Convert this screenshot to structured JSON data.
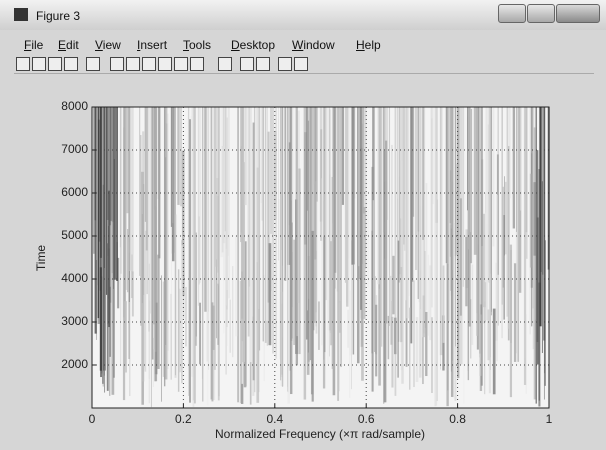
{
  "window": {
    "title": "Figure 3",
    "menu": [
      "File",
      "Edit",
      "View",
      "Insert",
      "Tools",
      "Desktop",
      "Window",
      "Help"
    ]
  },
  "chart_data": {
    "type": "spectrogram",
    "xlabel": "Normalized Frequency (×π rad/sample)",
    "ylabel": "Time",
    "xlim": [
      0,
      1
    ],
    "ylim": [
      1000,
      8000
    ],
    "xticks": [
      0,
      0.2,
      0.4,
      0.6,
      0.8,
      1
    ],
    "yticks": [
      2000,
      3000,
      4000,
      5000,
      6000,
      7000,
      8000
    ],
    "grid": true
  }
}
